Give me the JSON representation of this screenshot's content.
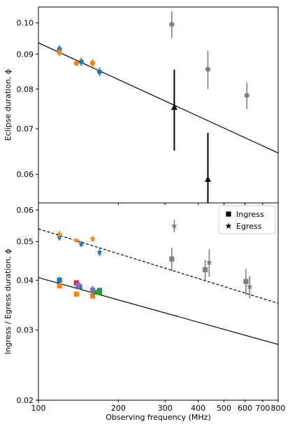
{
  "chart_data": [
    {
      "type": "scatter",
      "panel": "top",
      "ylabel": "Eclipse duration, ϕ",
      "xscale": "log",
      "yscale": "log",
      "xlim": [
        100,
        800
      ],
      "ylim": [
        0.0545,
        0.1055
      ],
      "yticks": [
        0.06,
        0.07,
        0.08,
        0.09,
        0.1
      ],
      "ytick_labels": [
        "0.06",
        "0.07",
        "0.08",
        "0.09",
        "0.10"
      ],
      "colors": {
        "blue": "#1f77b4",
        "orange": "#ff7f0e",
        "gray": "#7f7f7f",
        "black": "#000000"
      },
      "series": [
        {
          "color": "blue",
          "marker": "dot",
          "points": [
            {
              "x": 120,
              "y": 0.0915,
              "err": 0.0013
            },
            {
              "x": 145,
              "y": 0.0877,
              "err": 0.0012
            },
            {
              "x": 170,
              "y": 0.0848,
              "err": 0.0013
            }
          ]
        },
        {
          "color": "orange",
          "marker": "dot",
          "points": [
            {
              "x": 120,
              "y": 0.0905,
              "err": 0.0012
            },
            {
              "x": 139,
              "y": 0.0873,
              "err": 0.0008
            },
            {
              "x": 160,
              "y": 0.0873,
              "err": 0.0012
            }
          ]
        },
        {
          "color": "gray",
          "marker": "dot",
          "points": [
            {
              "x": 318,
              "y": 0.0995,
              "err": 0.0045
            },
            {
              "x": 435,
              "y": 0.0855,
              "err": 0.0055
            },
            {
              "x": 610,
              "y": 0.0783,
              "err": 0.0035
            }
          ]
        },
        {
          "color": "black",
          "marker": "triangle",
          "points": [
            {
              "x": 325,
              "y": 0.0752,
              "err": 0.0102
            },
            {
              "x": 435,
              "y": 0.059,
              "err": 0.01
            }
          ]
        }
      ],
      "fit_lines": [
        {
          "style": "solid",
          "points": [
            {
              "x": 100,
              "y": 0.0935
            },
            {
              "x": 800,
              "y": 0.0645
            }
          ]
        }
      ]
    },
    {
      "type": "scatter",
      "panel": "bottom",
      "xlabel": "Observing frequency (MHz)",
      "ylabel": "Ingress / Egress duration, ϕ",
      "xscale": "log",
      "yscale": "log",
      "xlim": [
        100,
        800
      ],
      "ylim": [
        0.02,
        0.0625
      ],
      "xticks": [
        100,
        200,
        300,
        400,
        500,
        600,
        700,
        800
      ],
      "xtick_labels": [
        "100",
        "200",
        "300",
        "400",
        "500",
        "600",
        "700",
        "800"
      ],
      "yticks": [
        0.02,
        0.03,
        0.04,
        0.05,
        0.06
      ],
      "ytick_labels": [
        "0.02",
        "0.03",
        "0.04",
        "0.05",
        "0.06"
      ],
      "legend": {
        "position": "top-right",
        "entries": [
          {
            "label": "Ingress",
            "marker": "square"
          },
          {
            "label": "Egress",
            "marker": "star"
          }
        ]
      },
      "colors": {
        "blue": "#1f77b4",
        "orange": "#ff7f0e",
        "green": "#2ca02c",
        "red": "#d62728",
        "purple": "#9467bd",
        "gray": "#7f7f7f"
      },
      "series": [
        {
          "kind": "ingress",
          "color": "blue",
          "marker": "square",
          "points": [
            {
              "x": 120,
              "y": 0.04,
              "err": 0.0008
            },
            {
              "x": 143,
              "y": 0.0385,
              "err": 0.0005
            },
            {
              "x": 170,
              "y": 0.0377,
              "err": 0.0006
            }
          ]
        },
        {
          "kind": "ingress",
          "color": "orange",
          "marker": "square",
          "points": [
            {
              "x": 120,
              "y": 0.0387,
              "err": 0.0005
            },
            {
              "x": 139,
              "y": 0.0369,
              "err": 0.0004
            },
            {
              "x": 160,
              "y": 0.0365,
              "err": 0.0004
            }
          ]
        },
        {
          "kind": "ingress",
          "color": "red",
          "marker": "square",
          "points": [
            {
              "x": 139,
              "y": 0.0394,
              "err": 0.0004
            }
          ]
        },
        {
          "kind": "ingress",
          "color": "purple",
          "marker": "square",
          "points": [
            {
              "x": 141,
              "y": 0.0389,
              "err": 0.0004
            },
            {
              "x": 160,
              "y": 0.0378,
              "err": 0.001
            }
          ]
        },
        {
          "kind": "ingress",
          "color": "green",
          "marker": "square",
          "points": [
            {
              "x": 164,
              "y": 0.0373,
              "err": 0.0004
            },
            {
              "x": 170,
              "y": 0.0373,
              "err": 0.0004
            }
          ]
        },
        {
          "kind": "ingress",
          "color": "gray",
          "marker": "square",
          "points": [
            {
              "x": 318,
              "y": 0.0452,
              "err": 0.003
            },
            {
              "x": 425,
              "y": 0.0425,
              "err": 0.0025
            },
            {
              "x": 605,
              "y": 0.0397,
              "err": 0.003
            }
          ]
        },
        {
          "kind": "egress",
          "color": "blue",
          "marker": "star",
          "points": [
            {
              "x": 120,
              "y": 0.0513,
              "err": 0.001
            },
            {
              "x": 145,
              "y": 0.0493,
              "err": 0.0008
            },
            {
              "x": 170,
              "y": 0.047,
              "err": 0.001
            }
          ]
        },
        {
          "kind": "egress",
          "color": "orange",
          "marker": "star",
          "points": [
            {
              "x": 120,
              "y": 0.0522,
              "err": 0.001
            },
            {
              "x": 139,
              "y": 0.0503,
              "err": 0.0005
            },
            {
              "x": 160,
              "y": 0.0508,
              "err": 0.0008
            }
          ]
        },
        {
          "kind": "egress",
          "color": "gray",
          "marker": "star",
          "points": [
            {
              "x": 325,
              "y": 0.0547,
              "err": 0.002
            },
            {
              "x": 440,
              "y": 0.0443,
              "err": 0.0035
            },
            {
              "x": 625,
              "y": 0.0385,
              "err": 0.0025
            }
          ]
        }
      ],
      "fit_lines": [
        {
          "style": "dashed",
          "points": [
            {
              "x": 100,
              "y": 0.0538
            },
            {
              "x": 800,
              "y": 0.035
            }
          ]
        },
        {
          "style": "solid",
          "points": [
            {
              "x": 100,
              "y": 0.0406
            },
            {
              "x": 800,
              "y": 0.0276
            }
          ]
        }
      ]
    }
  ]
}
